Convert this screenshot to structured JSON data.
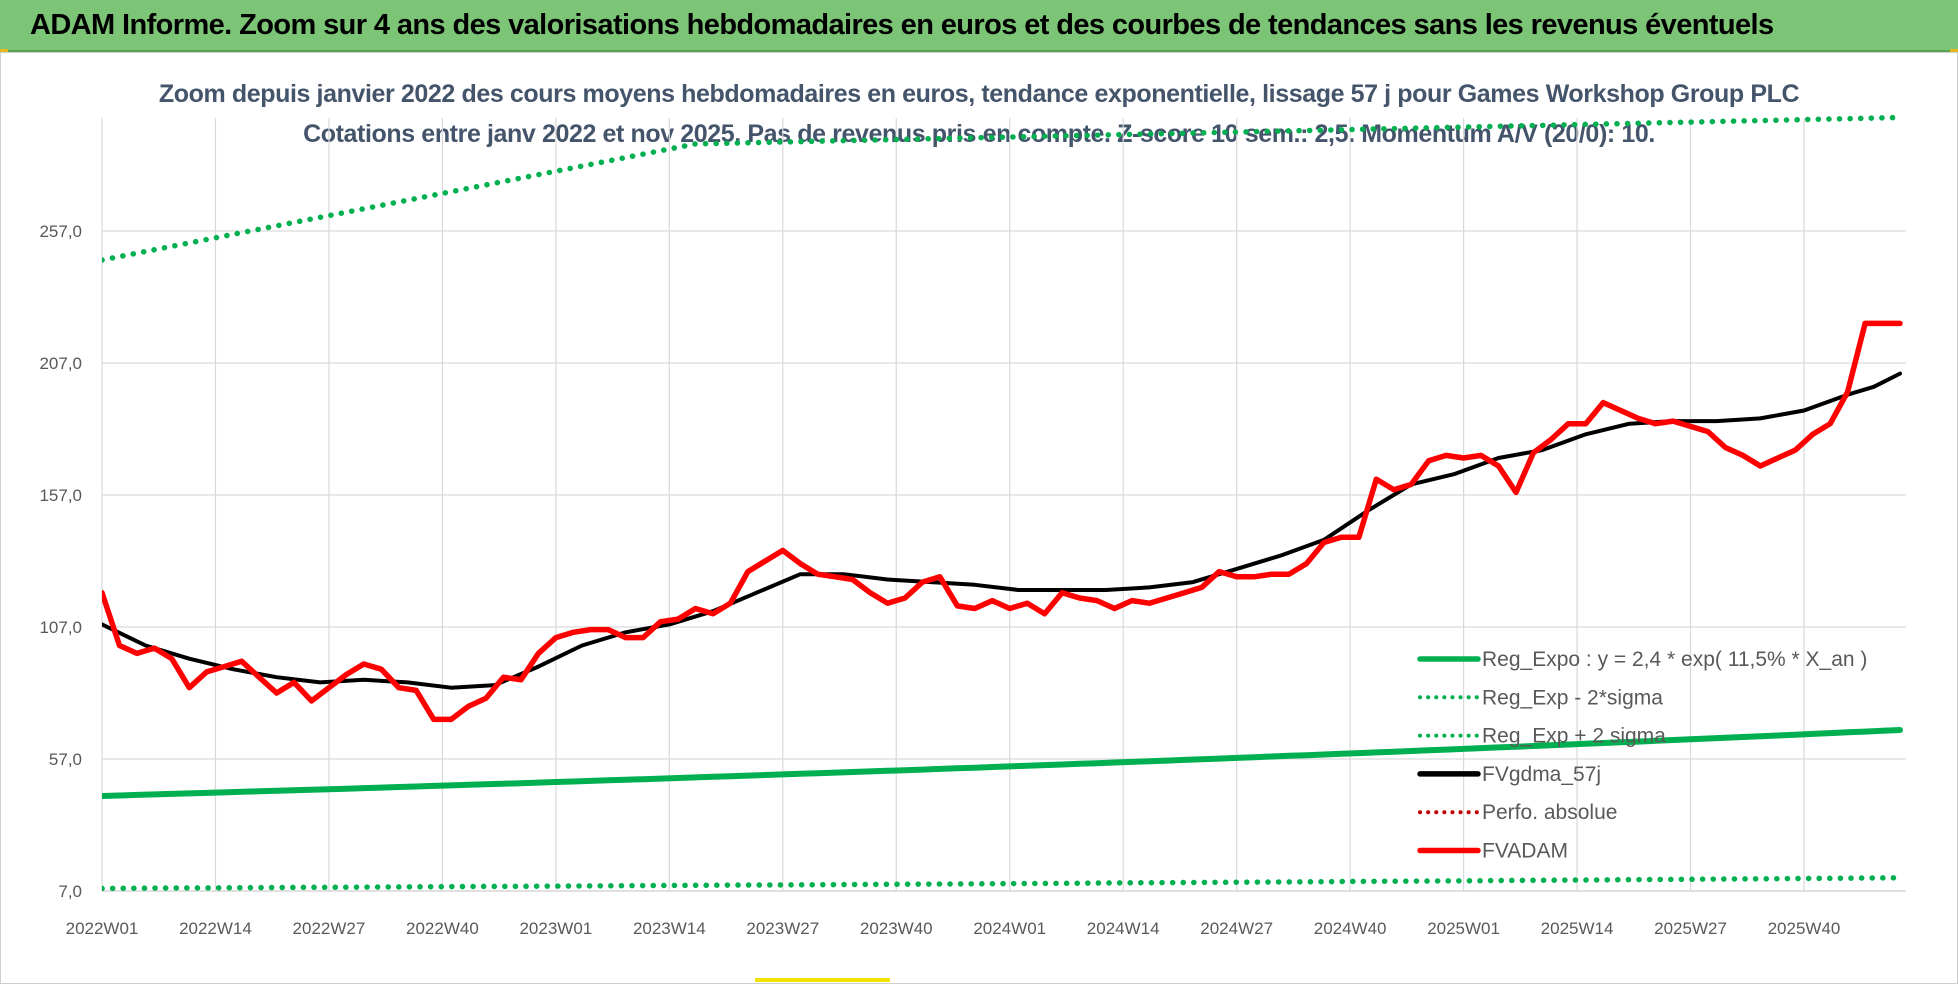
{
  "header": {
    "banner": "ADAM Informe. Zoom sur 4 ans des valorisations hebdomadaires en euros et des courbes de tendances sans les revenus éventuels"
  },
  "chart_data": {
    "type": "line",
    "title": "Zoom depuis janvier 2022 des cours moyens hebdomadaires en euros, tendance exponentielle, lissage 57 j pour Games Workshop Group PLC",
    "subtitle": "Cotations entre janv 2022 et nov 2025. Pas de revenus pris en compte. Z-score 10 sem.: 2,5. Momentum A/V (20/0): 10.",
    "xlabel": "",
    "ylabel": "",
    "ylim": [
      7,
      287
    ],
    "x_tick_labels": [
      "2022W01",
      "2022W14",
      "2022W27",
      "2022W40",
      "2023W01",
      "2023W14",
      "2023W27",
      "2023W40",
      "2024W01",
      "2024W14",
      "2024W27",
      "2024W40",
      "2025W01",
      "2025W14",
      "2025W27",
      "2025W40"
    ],
    "y_tick_labels": [
      "7,0",
      "57,0",
      "107,0",
      "157,0",
      "207,0",
      "257,0"
    ],
    "y_tick_values": [
      7,
      57,
      107,
      157,
      207,
      257
    ],
    "x_range_weeks": [
      0,
      206
    ],
    "legend": [
      {
        "name": "Reg_Expo : y = 2,4 * exp( 11,5% *  X_an )",
        "color": "#00b050",
        "style": "solid"
      },
      {
        "name": "Reg_Exp - 2*sigma",
        "color": "#00b050",
        "style": "dotted"
      },
      {
        "name": "Reg_Exp + 2 sigma",
        "color": "#00b050",
        "style": "dotted"
      },
      {
        "name": "FVgdma_57j",
        "color": "#000000",
        "style": "solid"
      },
      {
        "name": "Perfo. absolue",
        "color": "#c00000",
        "style": "dotted"
      },
      {
        "name": "FVADAM",
        "color": "#ff0000",
        "style": "solid"
      }
    ],
    "legend_position": "bottom-right",
    "series": [
      {
        "name": "Reg_Expo : y = 2,4 * exp( 11,5% *  X_an )",
        "x": [
          0,
          206
        ],
        "values": [
          43,
          68
        ]
      },
      {
        "name": "Reg_Exp - 2*sigma",
        "x": [
          0,
          206
        ],
        "values": [
          8,
          12
        ]
      },
      {
        "name": "Reg_Exp + 2 sigma",
        "x": [
          0,
          68,
          206
        ],
        "values": [
          246,
          290,
          300
        ]
      },
      {
        "name": "FVgdma_57j",
        "x": [
          0,
          5,
          10,
          15,
          20,
          25,
          30,
          35,
          40,
          45,
          50,
          55,
          60,
          65,
          70,
          75,
          80,
          85,
          90,
          95,
          100,
          105,
          110,
          115,
          120,
          125,
          130,
          135,
          140,
          145,
          150,
          155,
          160,
          165,
          170,
          175,
          180,
          185,
          190,
          195,
          200,
          203,
          206
        ],
        "values": [
          108,
          100,
          95,
          91,
          88,
          86,
          87,
          86,
          84,
          85,
          92,
          100,
          105,
          108,
          113,
          120,
          127,
          127,
          125,
          124,
          123,
          121,
          121,
          121,
          122,
          124,
          129,
          134,
          140,
          151,
          161,
          165,
          171,
          174,
          180,
          184,
          185,
          185,
          186,
          189,
          195,
          198,
          203
        ]
      },
      {
        "name": "FVADAM",
        "x": [
          0,
          2,
          4,
          6,
          8,
          10,
          12,
          14,
          16,
          18,
          20,
          22,
          24,
          26,
          28,
          30,
          32,
          34,
          36,
          38,
          40,
          42,
          44,
          46,
          48,
          50,
          52,
          54,
          56,
          58,
          60,
          62,
          64,
          66,
          68,
          70,
          72,
          74,
          76,
          78,
          80,
          82,
          84,
          86,
          88,
          90,
          92,
          94,
          96,
          98,
          100,
          102,
          104,
          106,
          108,
          110,
          112,
          114,
          116,
          118,
          120,
          122,
          124,
          126,
          128,
          130,
          132,
          134,
          136,
          138,
          140,
          142,
          144,
          146,
          148,
          150,
          152,
          154,
          156,
          158,
          160,
          162,
          164,
          166,
          168,
          170,
          172,
          174,
          176,
          178,
          180,
          182,
          184,
          186,
          188,
          190,
          192,
          194,
          196,
          198,
          200,
          202,
          204,
          206
        ],
        "values": [
          120,
          100,
          97,
          99,
          95,
          84,
          90,
          92,
          94,
          88,
          82,
          86,
          79,
          84,
          89,
          93,
          91,
          84,
          83,
          72,
          72,
          77,
          80,
          88,
          87,
          97,
          103,
          105,
          106,
          106,
          103,
          103,
          109,
          110,
          114,
          112,
          116,
          128,
          132,
          136,
          131,
          127,
          126,
          125,
          120,
          116,
          118,
          124,
          126,
          115,
          114,
          117,
          114,
          116,
          112,
          120,
          118,
          117,
          114,
          117,
          116,
          118,
          120,
          122,
          128,
          126,
          126,
          127,
          127,
          131,
          139,
          141,
          141,
          163,
          159,
          161,
          170,
          172,
          171,
          172,
          168,
          158,
          173,
          178,
          184,
          184,
          192,
          189,
          186,
          184,
          185,
          183,
          181,
          175,
          172,
          168,
          171,
          174,
          180,
          184,
          196,
          222,
          222,
          222
        ]
      }
    ]
  }
}
